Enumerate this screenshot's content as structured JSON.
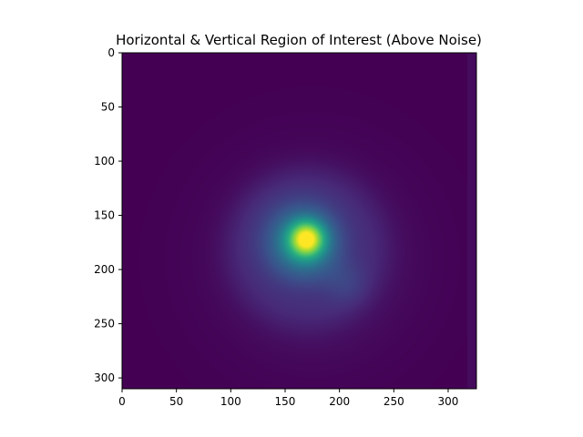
{
  "chart_data": {
    "type": "heatmap",
    "title": "Horizontal & Vertical Region of Interest (Above Noise)",
    "xlabel": "",
    "ylabel": "",
    "xlim": [
      0,
      326
    ],
    "ylim": [
      310,
      0
    ],
    "x_ticks": [
      0,
      50,
      100,
      150,
      200,
      250,
      300
    ],
    "y_ticks": [
      0,
      50,
      100,
      150,
      200,
      250,
      300
    ],
    "colormap": "viridis",
    "value_range": [
      0,
      1
    ],
    "grid": false,
    "legend": "none",
    "background_level": 0.0,
    "components": [
      {
        "kind": "gaussian",
        "cx": 170,
        "cy": 172,
        "sigma": 11,
        "amplitude": 0.6
      },
      {
        "kind": "gaussian",
        "cx": 166,
        "cy": 174,
        "sigma": 25,
        "amplitude": 0.42
      },
      {
        "kind": "gaussian",
        "cx": 175,
        "cy": 190,
        "sigma": 55,
        "amplitude": 0.1
      },
      {
        "kind": "ring",
        "cx": 170,
        "cy": 180,
        "radius": 62,
        "width": 14,
        "amplitude": 0.05
      },
      {
        "kind": "gaussian",
        "cx": 205,
        "cy": 212,
        "sigma": 14,
        "amplitude": 0.07
      }
    ],
    "right_edge_band": {
      "x_from": 318,
      "level": 0.03
    }
  }
}
